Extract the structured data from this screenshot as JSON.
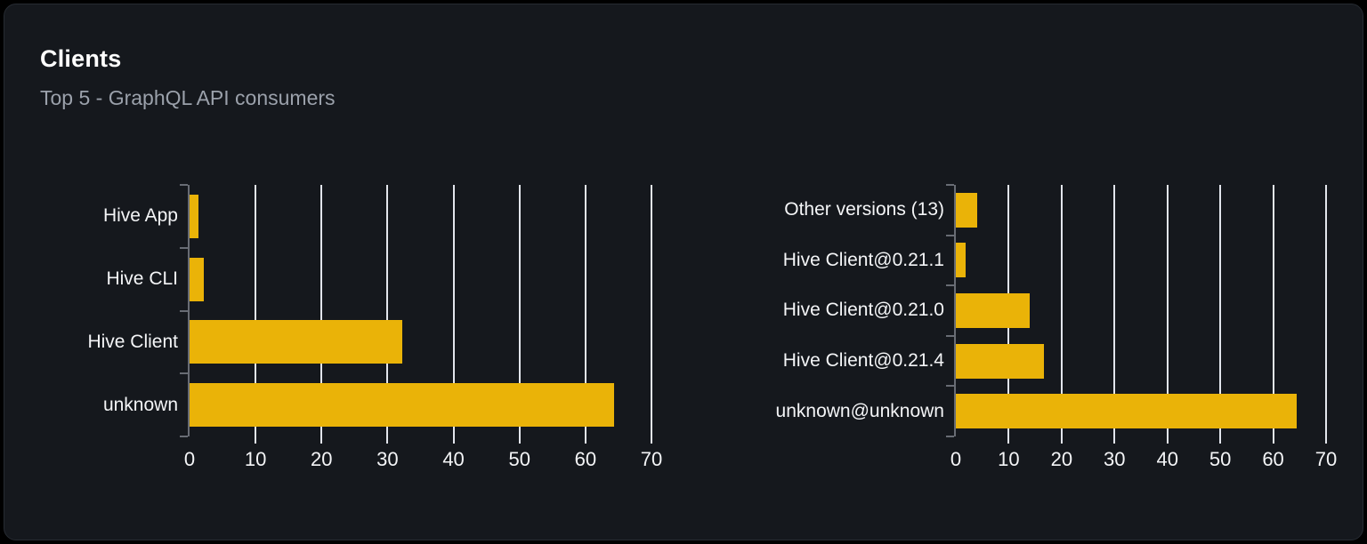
{
  "card": {
    "title": "Clients",
    "subtitle": "Top 5 - GraphQL API consumers"
  },
  "colors": {
    "bar": "#eab308",
    "card_background": "#15181d",
    "page_background": "#000000",
    "grid_line": "#e2e5ec",
    "axis_line": "#686c74",
    "label_text": "#f4f5f7",
    "subtitle_text": "#9ba1ab"
  },
  "chart_data": [
    {
      "type": "bar",
      "orientation": "horizontal",
      "title": "",
      "categories": [
        "Hive App",
        "Hive CLI",
        "Hive Client",
        "unknown"
      ],
      "values": [
        1.4,
        2.2,
        32.2,
        64.3
      ],
      "xlabel": "",
      "ylabel": "",
      "xlim": [
        0,
        70
      ],
      "xticks": [
        0,
        10,
        20,
        30,
        40,
        50,
        60,
        70
      ],
      "grid": true,
      "legend": false
    },
    {
      "type": "bar",
      "orientation": "horizontal",
      "title": "",
      "categories": [
        "Other versions (13)",
        "Hive Client@0.21.1",
        "Hive Client@0.21.0",
        "Hive Client@0.21.4",
        "unknown@unknown"
      ],
      "values": [
        4.0,
        1.9,
        13.9,
        16.6,
        64.5
      ],
      "xlabel": "",
      "ylabel": "",
      "xlim": [
        0,
        70
      ],
      "xticks": [
        0,
        10,
        20,
        30,
        40,
        50,
        60,
        70
      ],
      "grid": true,
      "legend": false
    }
  ]
}
